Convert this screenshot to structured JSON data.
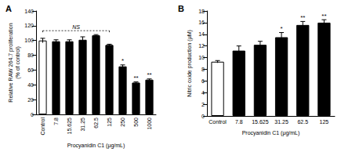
{
  "chart_data": [
    {
      "type": "bar",
      "title": "A",
      "x_label": "Procyanidin C1 (μg/mL)",
      "y_label": "Relative RAW 264.7 proliferation\n(% of control)",
      "categories": [
        "Control",
        "7.8",
        "15.625",
        "31.25",
        "62.5",
        "125",
        "250",
        "500",
        "1000"
      ],
      "values": [
        100,
        99,
        99,
        101,
        107,
        94,
        65,
        43,
        47
      ],
      "errors": [
        3,
        2,
        2,
        4,
        1,
        1,
        2,
        1,
        1
      ],
      "significance": [
        null,
        null,
        null,
        null,
        null,
        null,
        "*",
        "**",
        "**"
      ],
      "brackets": [
        {
          "text": "NS",
          "from": "Control",
          "to": "125"
        }
      ],
      "colors": [
        "#ffffff",
        "#000000",
        "#000000",
        "#000000",
        "#000000",
        "#000000",
        "#000000",
        "#000000",
        "#000000"
      ],
      "ylim": [
        0,
        140
      ],
      "yticks": [
        0,
        20,
        40,
        60,
        80,
        100,
        120,
        140
      ],
      "grid": false
    },
    {
      "type": "bar",
      "title": "B",
      "x_label": "Procyanidin C1 (μg/mL)",
      "y_label": "Nitric oxide production (μM)",
      "categories": [
        "Control",
        "7.8",
        "15.625",
        "31.25",
        "62.5",
        "125"
      ],
      "values": [
        9.3,
        11.2,
        12.2,
        13.5,
        15.6,
        16.0
      ],
      "errors": [
        0.2,
        0.8,
        0.6,
        0.8,
        0.6,
        0.5
      ],
      "significance": [
        null,
        null,
        null,
        "*",
        "**",
        "**"
      ],
      "colors": [
        "#ffffff",
        "#000000",
        "#000000",
        "#000000",
        "#000000",
        "#000000"
      ],
      "ylim": [
        0,
        18
      ],
      "yticks": [
        0,
        2,
        4,
        6,
        8,
        10,
        12,
        14,
        16,
        18
      ],
      "grid": false
    }
  ]
}
